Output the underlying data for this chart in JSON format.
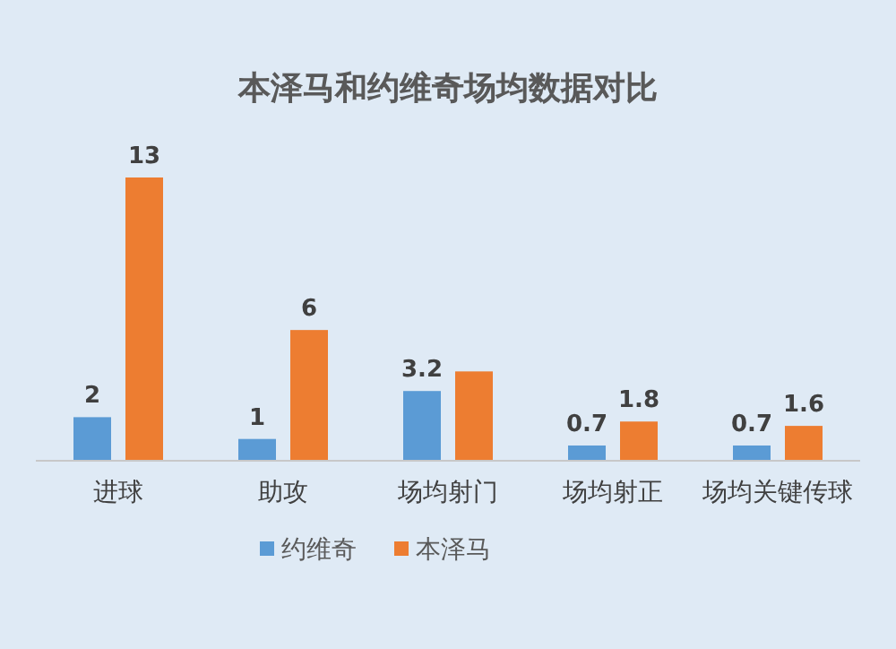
{
  "chart_data": {
    "type": "bar",
    "title": "本泽马和约维奇场均数据对比",
    "categories": [
      "进球",
      "助攻",
      "场均射门",
      "场均射正",
      "场均关键传球"
    ],
    "series": [
      {
        "name": "约维奇",
        "color": "#5b9bd5",
        "values": [
          2,
          1,
          3.2,
          0.7,
          0.7
        ],
        "value_labels": [
          "2",
          "1",
          "3.2",
          "0.7",
          "0.7"
        ]
      },
      {
        "name": "本泽马",
        "color": "#ed7d31",
        "values": [
          13,
          6,
          4.1,
          1.8,
          1.6
        ],
        "value_labels": [
          "13",
          "6",
          null,
          "1.8",
          "1.6"
        ]
      }
    ],
    "legend": "bottom"
  }
}
